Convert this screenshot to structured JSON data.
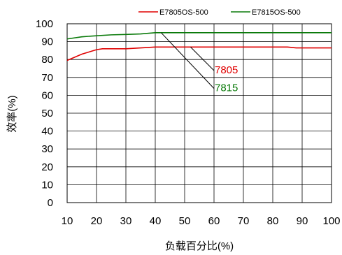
{
  "chart_data": {
    "type": "line",
    "xlabel": "负载百分比(%)",
    "ylabel": "效率(%)",
    "xlim": [
      10,
      100
    ],
    "ylim": [
      0,
      100
    ],
    "xticks": [
      10,
      20,
      30,
      40,
      50,
      60,
      70,
      80,
      90,
      100
    ],
    "yticks": [
      0,
      10,
      20,
      30,
      40,
      50,
      60,
      70,
      80,
      90,
      100
    ],
    "grid": true,
    "legend_position": "top-right",
    "series": [
      {
        "name": "E7805OS-500",
        "color": "#e00000",
        "x": [
          10,
          15,
          20,
          22,
          25,
          30,
          35,
          40,
          50,
          60,
          70,
          80,
          85,
          88,
          90,
          100
        ],
        "y": [
          79.5,
          83,
          85.5,
          86,
          86,
          86,
          86.5,
          87,
          87,
          87,
          87,
          87,
          87,
          86.5,
          86.5,
          86.5
        ]
      },
      {
        "name": "E7815OS-500",
        "color": "#0a7a0a",
        "x": [
          10,
          15,
          20,
          25,
          30,
          35,
          40,
          45,
          50,
          60,
          70,
          80,
          90,
          100
        ],
        "y": [
          91.5,
          92.7,
          93.3,
          93.8,
          94,
          94.3,
          95,
          95,
          95,
          95,
          95,
          95,
          95,
          95
        ]
      }
    ],
    "annotations": [
      {
        "text": "7805",
        "color": "#e00000",
        "from": [
          52,
          87
        ],
        "to": [
          60,
          75
        ]
      },
      {
        "text": "7815",
        "color": "#0a7a0a",
        "from": [
          42,
          95
        ],
        "to": [
          60,
          65
        ]
      }
    ]
  }
}
